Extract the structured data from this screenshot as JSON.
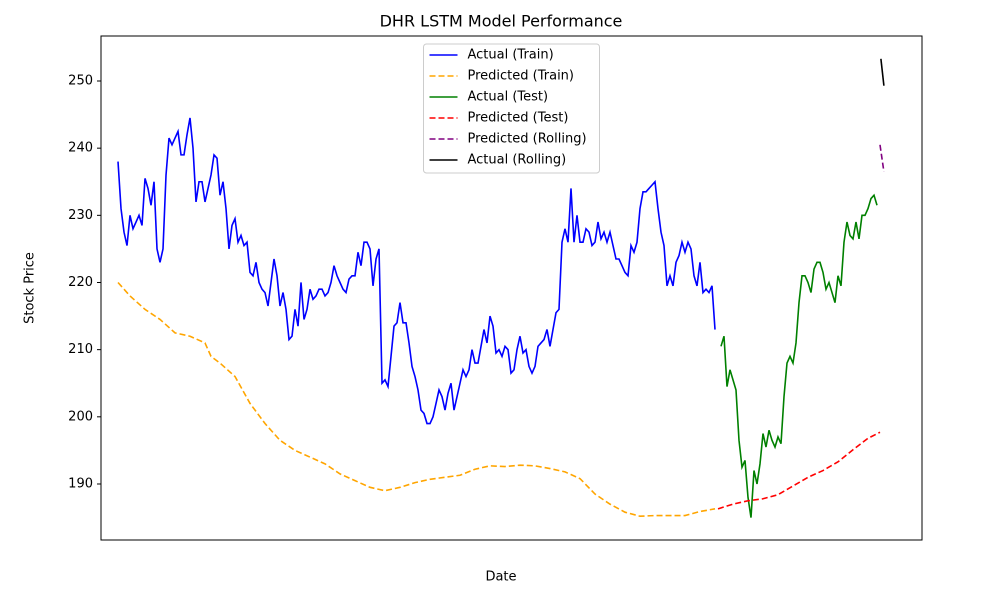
{
  "chart_data": {
    "type": "line",
    "title": "DHR LSTM Model Performance",
    "x_label": "Date",
    "y_label": "Stock Price",
    "xlim": [
      -5.67,
      268
    ],
    "ylim": [
      181.66,
      256.7
    ],
    "yticks": [
      190,
      200,
      210,
      220,
      230,
      240,
      250
    ],
    "legend": "upper center",
    "series": [
      {
        "name": "Actual (Train)",
        "color": "#0000ff",
        "dashed": false,
        "x": [
          0,
          1,
          2,
          3,
          4,
          5,
          6,
          7,
          8,
          9,
          10,
          11,
          12,
          13,
          14,
          15,
          16,
          17,
          18,
          19,
          20,
          21,
          22,
          23,
          24,
          25,
          26,
          27,
          28,
          29,
          30,
          31,
          32,
          33,
          34,
          35,
          36,
          37,
          38,
          39,
          40,
          41,
          42,
          43,
          44,
          45,
          46,
          47,
          48,
          49,
          50,
          51,
          52,
          53,
          54,
          55,
          56,
          57,
          58,
          59,
          60,
          61,
          62,
          63,
          64,
          65,
          66,
          67,
          68,
          69,
          70,
          71,
          72,
          73,
          74,
          75,
          76,
          77,
          78,
          79,
          80,
          81,
          82,
          83,
          84,
          85,
          86,
          87,
          88,
          89,
          90,
          91,
          92,
          93,
          94,
          95,
          96,
          97,
          98,
          99,
          100,
          101,
          102,
          103,
          104,
          105,
          106,
          107,
          108,
          109,
          110,
          111,
          112,
          113,
          114,
          115,
          116,
          117,
          118,
          119,
          120,
          121,
          122,
          123,
          124,
          125,
          126,
          127,
          128,
          129,
          130,
          131,
          132,
          133,
          134,
          135,
          136,
          137,
          138,
          139,
          140,
          141,
          142,
          143,
          144,
          145,
          146,
          147,
          148,
          149,
          150,
          151,
          152,
          153,
          154,
          155,
          156,
          157,
          158,
          159,
          160,
          161,
          162,
          163,
          164,
          165,
          166,
          167,
          168,
          169,
          170,
          171,
          172,
          173,
          174,
          175,
          176,
          177,
          178,
          179,
          180,
          181,
          182,
          183,
          184,
          185,
          186,
          187,
          188,
          189,
          190,
          191,
          192,
          193,
          194,
          195,
          196,
          197,
          198,
          199
        ],
        "values": [
          238,
          231,
          227.5,
          225.5,
          230,
          228,
          229,
          230,
          228.5,
          235.5,
          234,
          231.5,
          235,
          225,
          223,
          225,
          236,
          241.5,
          240.5,
          241.5,
          242.5,
          239,
          239,
          242,
          244.5,
          240,
          232,
          235,
          235,
          232,
          234,
          236,
          239,
          238.5,
          233,
          235,
          231,
          225,
          228.5,
          229.5,
          226,
          227,
          225.5,
          226,
          221.5,
          221,
          223,
          220,
          219,
          218.5,
          216.5,
          220,
          223.5,
          221,
          216.5,
          218.5,
          216,
          211.5,
          212,
          216,
          213.5,
          220,
          214.5,
          216,
          219,
          217.5,
          218,
          219,
          219,
          218,
          218.5,
          220,
          222.5,
          221,
          220,
          219,
          218.5,
          220.5,
          221,
          221,
          224.5,
          222.5,
          226,
          226,
          225,
          219.5,
          223.5,
          225,
          205,
          205.5,
          204.5,
          209,
          213.5,
          214,
          217,
          214,
          214,
          211,
          207.5,
          206,
          204,
          201,
          200.5,
          199,
          199,
          200,
          202,
          204,
          203,
          201,
          203.5,
          205,
          201,
          203,
          205,
          207,
          206,
          207,
          210,
          208,
          208,
          210.5,
          213,
          211,
          215,
          213.5,
          209.5,
          210,
          209,
          210.5,
          210,
          206.5,
          207,
          210,
          212,
          209.5,
          210,
          207.5,
          206.5,
          207.5,
          210.5,
          211,
          211.5,
          213,
          210.5,
          213,
          215.5,
          216,
          226,
          228,
          226,
          234,
          226,
          230,
          226,
          226,
          228,
          227.5,
          225.5,
          226,
          229,
          226.5,
          227.5,
          226,
          227.5,
          225.5,
          223.5,
          223.5,
          222.5,
          221.5,
          221,
          225.5,
          224.5,
          226,
          231,
          233.5,
          233.5,
          234,
          234.5,
          235,
          231,
          227.5,
          225.5,
          219.5,
          221,
          219.5,
          223,
          224,
          226,
          224.5,
          226,
          225,
          221,
          219.5,
          223,
          218.5,
          219,
          218.5,
          219.5,
          213
        ]
      },
      {
        "name": "Predicted (Train)",
        "color": "#ffa500",
        "dashed": true,
        "x": [
          0,
          4,
          9,
          14,
          19,
          24,
          29,
          31,
          34,
          39,
          44,
          49,
          54,
          59,
          64,
          69,
          74,
          79,
          84,
          89,
          94,
          99,
          104,
          109,
          114,
          119,
          124,
          129,
          134,
          139,
          144,
          149,
          154,
          159,
          164,
          169,
          174,
          179,
          184,
          189,
          194,
          199
        ],
        "values": [
          220,
          218,
          216,
          214.5,
          212.5,
          212,
          211,
          209,
          208,
          206,
          202,
          199,
          196.5,
          195,
          194,
          193,
          191.5,
          190.5,
          189.5,
          189,
          189.5,
          190.2,
          190.7,
          191,
          191.3,
          192.2,
          192.7,
          192.6,
          192.8,
          192.7,
          192.3,
          191.8,
          190.8,
          188.5,
          187,
          185.8,
          185.2,
          185.3,
          185.3,
          185.3,
          185.9,
          186.3
        ]
      },
      {
        "name": "Actual (Test)",
        "color": "#008000",
        "dashed": false,
        "x": [
          201,
          202,
          203,
          204,
          205,
          206,
          207,
          208,
          209,
          210,
          211,
          212,
          213,
          214,
          215,
          216,
          217,
          218,
          219,
          220,
          221,
          222,
          223,
          224,
          225,
          226,
          227,
          228,
          229,
          230,
          231,
          232,
          233,
          234,
          235,
          236,
          237,
          238,
          239,
          240,
          241,
          242,
          243,
          244,
          245,
          246,
          247,
          248,
          249,
          250,
          251,
          252,
          253
        ],
        "values": [
          210.5,
          212,
          204.5,
          207,
          205.5,
          204,
          196.5,
          192.5,
          193.5,
          188,
          185,
          192,
          190,
          193,
          197.5,
          195.5,
          198,
          196.5,
          195.5,
          197,
          196,
          203,
          208,
          209,
          208,
          211,
          217,
          221,
          221,
          220,
          218.5,
          222,
          223,
          223,
          221.5,
          219,
          220,
          218.5,
          217,
          221,
          219.5,
          226,
          229,
          227,
          226.5,
          229,
          226.5,
          230,
          230,
          231,
          232.5,
          233,
          231.5
        ]
      },
      {
        "name": "Predicted (Test)",
        "color": "#ff0000",
        "dashed": true,
        "x": [
          200,
          205,
          210,
          215,
          220,
          225,
          230,
          235,
          240,
          245,
          250,
          254
        ],
        "values": [
          186.3,
          187,
          187.5,
          187.8,
          188.4,
          189.7,
          191,
          192,
          193.3,
          195.1,
          196.8,
          197.7
        ]
      },
      {
        "name": "Predicted (Rolling)",
        "color": "#800080",
        "dashed": true,
        "x": [
          254,
          255.3
        ],
        "values": [
          240.5,
          236.5
        ]
      },
      {
        "name": "Actual (Rolling)",
        "color": "#000000",
        "dashed": false,
        "x": [
          254.3,
          255.3
        ],
        "values": [
          253.3,
          249.3
        ]
      }
    ]
  }
}
